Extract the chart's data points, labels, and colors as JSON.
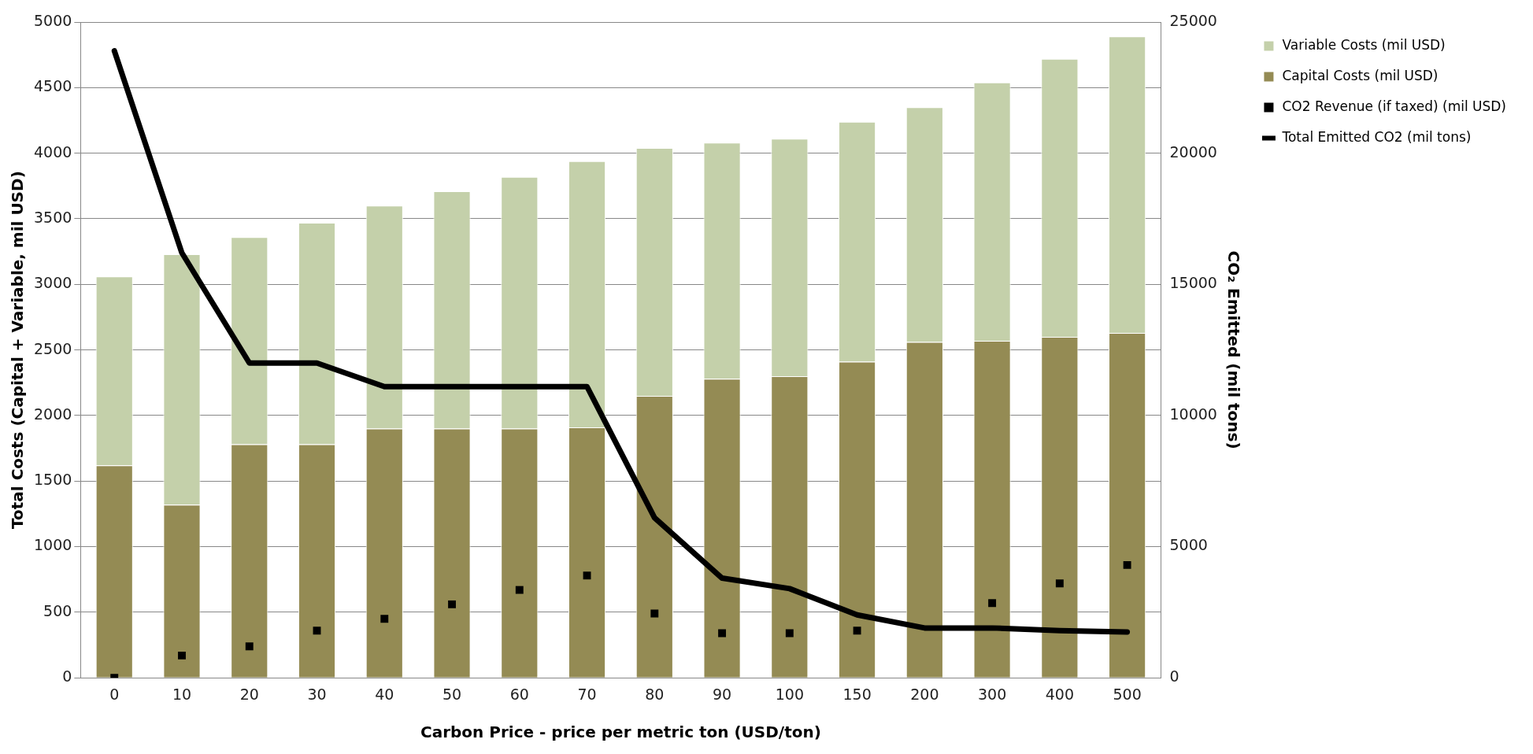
{
  "chart_data": {
    "type": "bar",
    "stacked": true,
    "xlabel": "Carbon Price - price per metric ton (USD/ton)",
    "ylabel": "Total Costs (Capital + Variable, mil USD)",
    "y2label": "CO₂ Emitted (mil tons)",
    "categories": [
      "0",
      "10",
      "20",
      "30",
      "40",
      "50",
      "60",
      "70",
      "80",
      "90",
      "100",
      "150",
      "200",
      "300",
      "400",
      "500"
    ],
    "ylim": [
      0,
      5000
    ],
    "yticks": [
      0,
      500,
      1000,
      1500,
      2000,
      2500,
      3000,
      3500,
      4000,
      4500,
      5000
    ],
    "y2lim": [
      0,
      25000
    ],
    "y2ticks": [
      0,
      5000,
      10000,
      15000,
      20000,
      25000
    ],
    "grid": "y",
    "legend": "top right",
    "series": [
      {
        "name": "Capital Costs (mil USD)",
        "color": "#948b54",
        "values": [
          1620,
          1320,
          1780,
          1780,
          1900,
          1900,
          1900,
          1910,
          2150,
          2280,
          2300,
          2410,
          2560,
          2570,
          2600,
          2630
        ]
      },
      {
        "name": "Variable Costs (mil USD)",
        "color": "#c4d0aa",
        "values": [
          1440,
          1910,
          1580,
          1690,
          1700,
          1810,
          1920,
          2030,
          1890,
          1800,
          1810,
          1830,
          1790,
          1970,
          2120,
          2260
        ]
      },
      {
        "name": "CO2 Revenue (if taxed) (mil USD)",
        "type": "scatter",
        "color": "#000000",
        "values": [
          0,
          170,
          240,
          360,
          450,
          560,
          670,
          780,
          490,
          340,
          340,
          360,
          null,
          570,
          720,
          860
        ]
      },
      {
        "name": "Total Emitted CO2 (mil tons)",
        "type": "line",
        "axis": "y2",
        "color": "#000000",
        "values": [
          23900,
          16200,
          12000,
          12000,
          11100,
          11100,
          11100,
          11100,
          6100,
          3800,
          3400,
          2400,
          1900,
          1900,
          1800,
          1750
        ]
      }
    ]
  }
}
